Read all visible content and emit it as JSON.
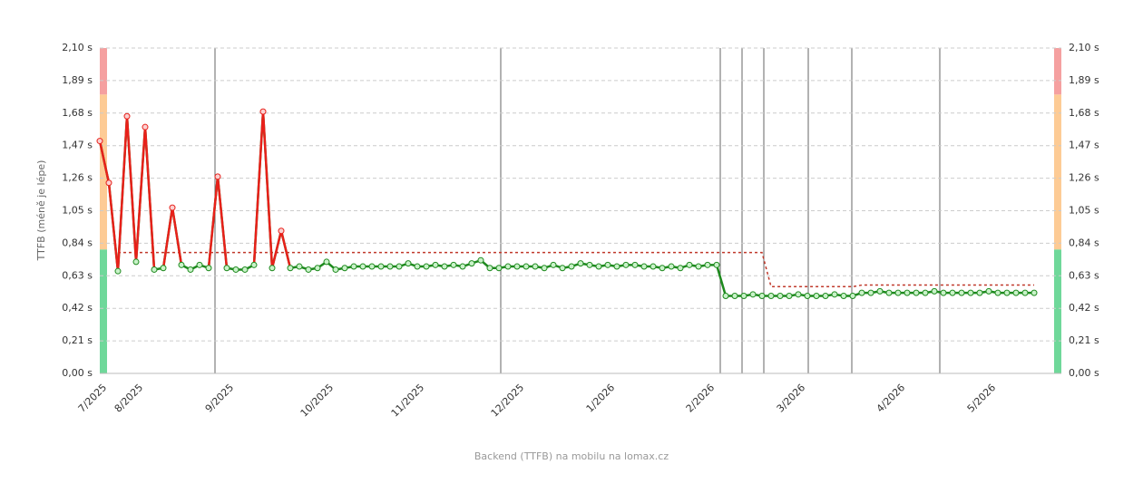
{
  "chart_data": {
    "type": "line",
    "y_label": "TTFB (méně je lépe)",
    "caption": "Backend (TTFB) na mobilu na lomax.cz",
    "categories": [
      "7/2025",
      null,
      null,
      null,
      "8/2025",
      null,
      null,
      null,
      null,
      null,
      null,
      null,
      null,
      null,
      "9/2025",
      null,
      null,
      null,
      null,
      null,
      null,
      null,
      null,
      null,
      null,
      "10/2025",
      null,
      null,
      null,
      null,
      null,
      null,
      null,
      null,
      null,
      "11/2025",
      null,
      null,
      null,
      null,
      null,
      null,
      null,
      null,
      null,
      null,
      "12/2025",
      null,
      null,
      null,
      null,
      null,
      null,
      null,
      null,
      null,
      "1/2026",
      null,
      null,
      null,
      null,
      null,
      null,
      null,
      null,
      null,
      null,
      "2/2026",
      null,
      null,
      null,
      null,
      null,
      null,
      null,
      null,
      null,
      "3/2026",
      null,
      null,
      null,
      null,
      null,
      null,
      null,
      null,
      null,
      null,
      "4/2026",
      null,
      null,
      null,
      null,
      null,
      null,
      null,
      null,
      null,
      "5/2026",
      null,
      null,
      null,
      null,
      null
    ],
    "series": [
      {
        "color": "#1e8a1e",
        "alert_color": "#e8201a",
        "values": [
          1.5,
          1.23,
          0.66,
          1.66,
          0.72,
          1.59,
          0.67,
          0.68,
          1.07,
          0.7,
          0.67,
          0.7,
          0.68,
          1.27,
          0.68,
          0.67,
          0.67,
          0.7,
          1.69,
          0.68,
          0.92,
          0.68,
          0.69,
          0.67,
          0.68,
          0.72,
          0.67,
          0.68,
          0.69,
          0.69,
          0.69,
          0.69,
          0.69,
          0.69,
          0.71,
          0.69,
          0.69,
          0.7,
          0.69,
          0.7,
          0.69,
          0.71,
          0.73,
          0.68,
          0.68,
          0.69,
          0.69,
          0.69,
          0.69,
          0.68,
          0.7,
          0.68,
          0.69,
          0.71,
          0.7,
          0.69,
          0.7,
          0.69,
          0.7,
          0.7,
          0.69,
          0.69,
          0.68,
          0.69,
          0.68,
          0.7,
          0.69,
          0.7,
          0.7,
          0.5,
          0.5,
          0.5,
          0.51,
          0.5,
          0.5,
          0.5,
          0.5,
          0.51,
          0.5,
          0.5,
          0.5,
          0.51,
          0.5,
          0.5,
          0.52,
          0.52,
          0.53,
          0.52,
          0.52,
          0.52,
          0.52,
          0.52,
          0.53,
          0.52,
          0.52,
          0.52,
          0.52,
          0.52,
          0.53,
          0.52,
          0.52,
          0.52,
          0.52,
          0.52
        ]
      },
      {
        "color": "#c0392b",
        "dashed": true,
        "values": [
          null,
          null,
          0.78,
          0.78,
          0.78,
          0.78,
          0.78,
          0.78,
          0.78,
          0.78,
          0.78,
          0.78,
          0.78,
          0.78,
          0.78,
          0.78,
          0.78,
          0.78,
          0.78,
          0.78,
          0.78,
          0.78,
          0.78,
          0.78,
          0.78,
          0.78,
          0.78,
          0.78,
          0.78,
          0.78,
          0.78,
          0.78,
          0.78,
          0.78,
          0.78,
          0.78,
          0.78,
          0.78,
          0.78,
          0.78,
          0.78,
          0.78,
          0.78,
          0.78,
          0.78,
          0.78,
          0.78,
          0.78,
          0.78,
          0.78,
          0.78,
          0.78,
          0.78,
          0.78,
          0.78,
          0.78,
          0.78,
          0.78,
          0.78,
          0.78,
          0.78,
          0.78,
          0.78,
          0.78,
          0.78,
          0.78,
          0.78,
          0.78,
          0.78,
          0.78,
          0.78,
          0.78,
          0.78,
          0.78,
          0.56,
          0.56,
          0.56,
          0.56,
          0.56,
          0.56,
          0.56,
          0.56,
          0.56,
          0.56,
          0.57,
          0.57,
          0.57,
          0.57,
          0.57,
          0.57,
          0.57,
          0.57,
          0.57,
          0.57,
          0.57,
          0.57,
          0.57,
          0.57,
          0.57,
          0.57,
          0.57,
          0.57,
          0.57,
          0.57
        ]
      }
    ],
    "ylim": [
      0,
      2.1
    ],
    "yticks": [
      {
        "value": 0,
        "label": "0,00 s"
      },
      {
        "value": 0.21,
        "label": "0,21 s"
      },
      {
        "value": 0.42,
        "label": "0,42 s"
      },
      {
        "value": 0.63,
        "label": "0,63 s"
      },
      {
        "value": 0.84,
        "label": "0,84 s"
      },
      {
        "value": 1.05,
        "label": "1,05 s"
      },
      {
        "value": 1.26,
        "label": "1,26 s"
      },
      {
        "value": 1.47,
        "label": "1,47 s"
      },
      {
        "value": 1.68,
        "label": "1,68 s"
      },
      {
        "value": 1.89,
        "label": "1,89 s"
      },
      {
        "value": 2.1,
        "label": "2,10 s"
      }
    ],
    "grid": true,
    "bands": [
      {
        "from": 0,
        "to": 0.8,
        "color": "#6fd89a"
      },
      {
        "from": 0.8,
        "to": 1.8,
        "color": "#fdcb95"
      },
      {
        "from": 1.8,
        "to": 2.1,
        "color": "#f5a0a0"
      }
    ]
  }
}
